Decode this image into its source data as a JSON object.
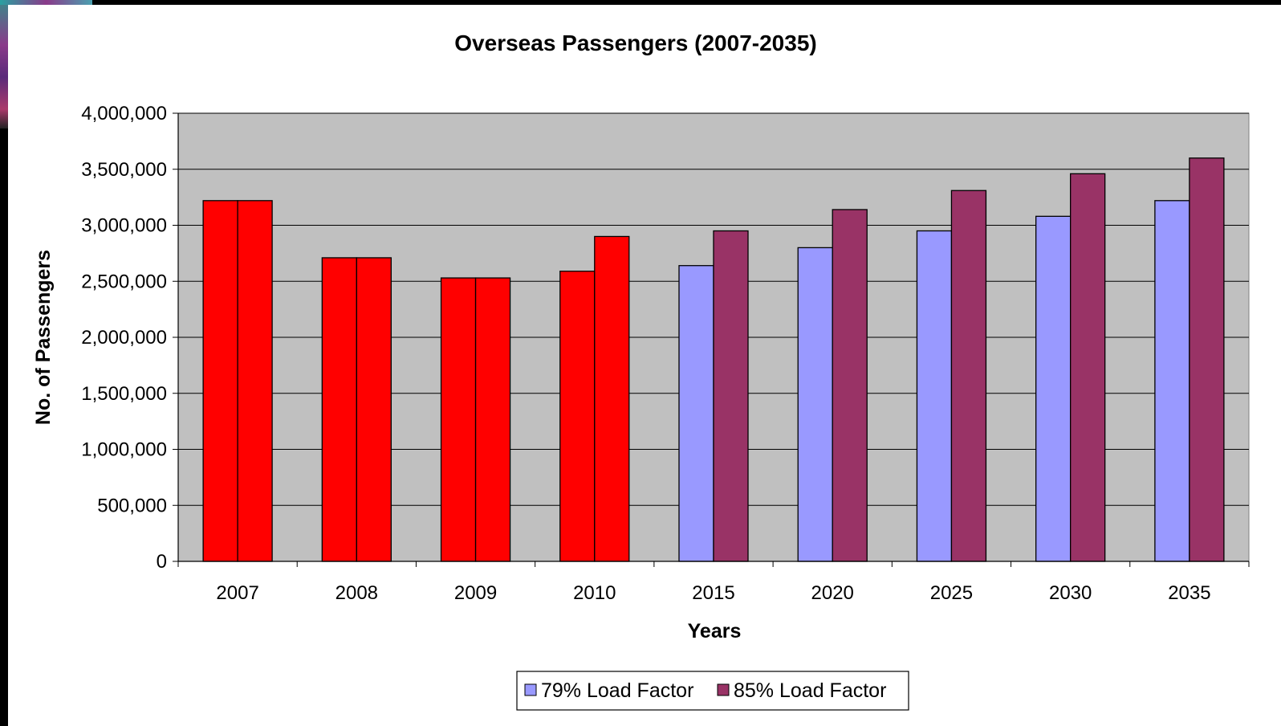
{
  "chart_data": {
    "type": "bar",
    "title": "Overseas Passengers (2007-2035)",
    "xlabel": "Years",
    "ylabel": "No. of Passengers",
    "categories": [
      "2007",
      "2008",
      "2009",
      "2010",
      "2015",
      "2020",
      "2025",
      "2030",
      "2035"
    ],
    "ylim": [
      0,
      4000000
    ],
    "yticks": [
      0,
      500000,
      1000000,
      1500000,
      2000000,
      2500000,
      3000000,
      3500000,
      4000000
    ],
    "ytick_labels": [
      "0",
      "500,000",
      "1,000,000",
      "1,500,000",
      "2,000,000",
      "2,500,000",
      "3,000,000",
      "3,500,000",
      "4,000,000"
    ],
    "grid": true,
    "plot_background": "#c0c0c0",
    "legend_position": "bottom",
    "historical_color": "#ff0000",
    "historical_categories": [
      "2007",
      "2008",
      "2009",
      "2010"
    ],
    "series": [
      {
        "name": "79% Load Factor",
        "color": "#9999ff",
        "values": [
          3220000,
          2710000,
          2530000,
          2590000,
          2640000,
          2800000,
          2950000,
          3080000,
          3220000
        ]
      },
      {
        "name": "85% Load Factor",
        "color": "#993366",
        "values": [
          3220000,
          2710000,
          2530000,
          2900000,
          2950000,
          3140000,
          3310000,
          3460000,
          3600000
        ]
      }
    ]
  }
}
